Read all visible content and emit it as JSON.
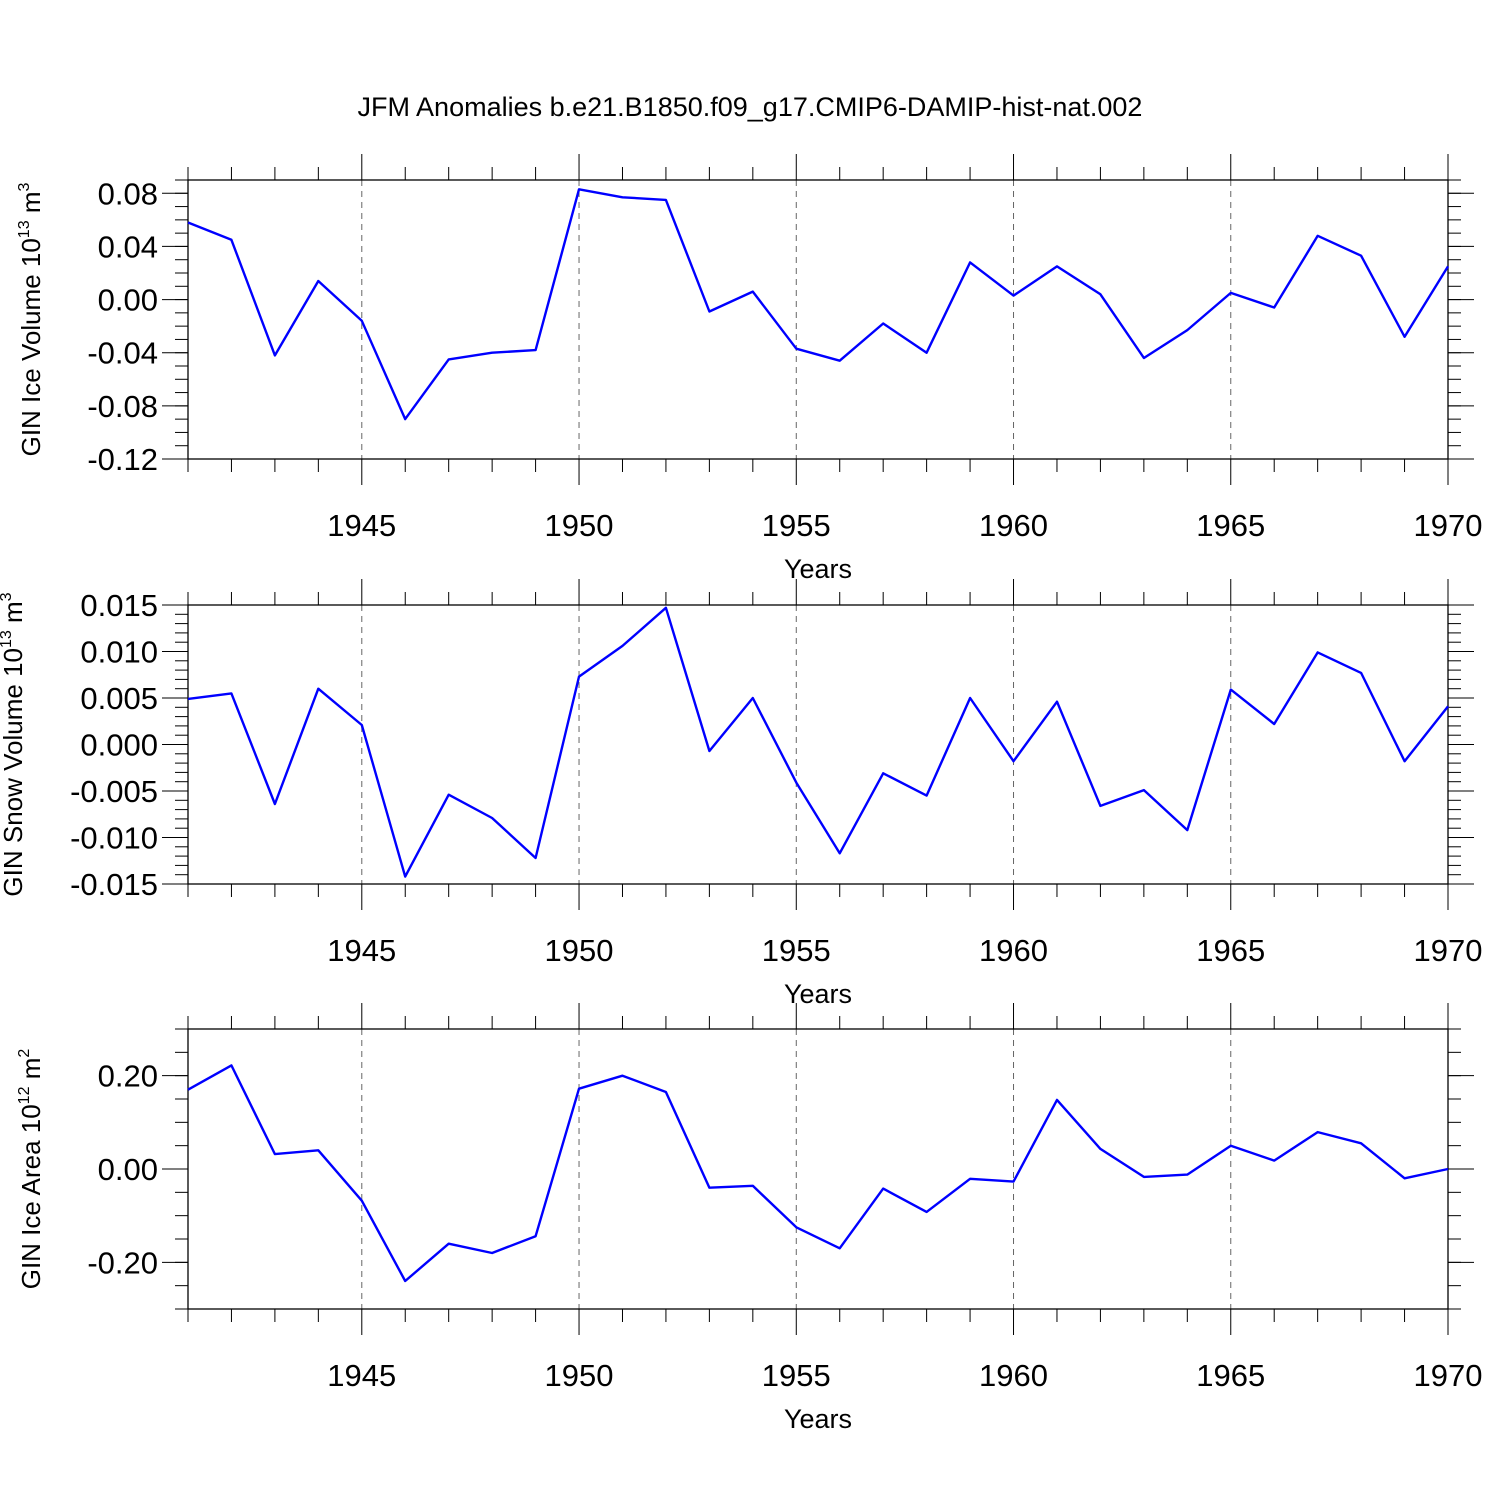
{
  "figure": {
    "title": "JFM Anomalies b.e21.B1850.f09_g17.CMIP6-DAMIP-hist-nat.002",
    "line_color": "#0000ff"
  },
  "chart_data": [
    {
      "type": "line",
      "ylabel": "GIN Ice Volume 10",
      "ylabel_exp": "13",
      "ylabel_unit": " m",
      "ylabel_unit_exp": "3",
      "xlabel": "Years",
      "xlim": [
        1941,
        1970
      ],
      "ylim": [
        -0.12,
        0.09
      ],
      "xticks": [
        1945,
        1950,
        1955,
        1960,
        1965,
        1970
      ],
      "xtick_labels": [
        "1945",
        "1950",
        "1955",
        "1960",
        "1965",
        "1970"
      ],
      "yticks": [
        -0.12,
        -0.08,
        -0.04,
        0.0,
        0.04,
        0.08
      ],
      "ytick_labels": [
        "-0.12",
        "-0.08",
        "-0.04",
        "0.00",
        "0.04",
        "0.08"
      ],
      "yminor_step": 0.01,
      "x": [
        1941,
        1942,
        1943,
        1944,
        1945,
        1946,
        1947,
        1948,
        1949,
        1950,
        1951,
        1952,
        1953,
        1954,
        1955,
        1956,
        1957,
        1958,
        1959,
        1960,
        1961,
        1962,
        1963,
        1964,
        1965,
        1966,
        1967,
        1968,
        1969,
        1970
      ],
      "values": [
        0.058,
        0.045,
        -0.042,
        0.014,
        -0.016,
        -0.09,
        -0.045,
        -0.04,
        -0.038,
        0.083,
        0.077,
        0.075,
        -0.009,
        0.006,
        -0.037,
        -0.046,
        -0.018,
        -0.04,
        0.028,
        0.003,
        0.025,
        0.004,
        -0.044,
        -0.023,
        0.005,
        -0.006,
        0.048,
        0.033,
        -0.028,
        0.025
      ]
    },
    {
      "type": "line",
      "ylabel": "GIN Snow Volume 10",
      "ylabel_exp": "13",
      "ylabel_unit": " m",
      "ylabel_unit_exp": "3",
      "xlabel": "Years",
      "xlim": [
        1941,
        1970
      ],
      "ylim": [
        -0.015,
        0.015
      ],
      "xticks": [
        1945,
        1950,
        1955,
        1960,
        1965,
        1970
      ],
      "xtick_labels": [
        "1945",
        "1950",
        "1955",
        "1960",
        "1965",
        "1970"
      ],
      "yticks": [
        -0.015,
        -0.01,
        -0.005,
        0.0,
        0.005,
        0.01,
        0.015
      ],
      "ytick_labels": [
        "-0.015",
        "-0.010",
        "-0.005",
        "0.000",
        "0.005",
        "0.010",
        "0.015"
      ],
      "yminor_step": 0.001,
      "x": [
        1941,
        1942,
        1943,
        1944,
        1945,
        1946,
        1947,
        1948,
        1949,
        1950,
        1951,
        1952,
        1953,
        1954,
        1955,
        1956,
        1957,
        1958,
        1959,
        1960,
        1961,
        1962,
        1963,
        1964,
        1965,
        1966,
        1967,
        1968,
        1969,
        1970
      ],
      "values": [
        0.0049,
        0.0055,
        -0.0064,
        0.006,
        0.0021,
        -0.0142,
        -0.0054,
        -0.0079,
        -0.0122,
        0.0073,
        0.0106,
        0.0147,
        -0.0007,
        0.005,
        -0.0041,
        -0.0117,
        -0.0031,
        -0.0055,
        0.005,
        -0.0018,
        0.0046,
        -0.0066,
        -0.0049,
        -0.0092,
        0.0059,
        0.0022,
        0.0099,
        0.0077,
        -0.0018,
        0.0041
      ]
    },
    {
      "type": "line",
      "ylabel": "GIN Ice Area 10",
      "ylabel_exp": "12",
      "ylabel_unit": " m",
      "ylabel_unit_exp": "2",
      "xlabel": "Years",
      "xlim": [
        1941,
        1970
      ],
      "ylim": [
        -0.3,
        0.3
      ],
      "xticks": [
        1945,
        1950,
        1955,
        1960,
        1965,
        1970
      ],
      "xtick_labels": [
        "1945",
        "1950",
        "1955",
        "1960",
        "1965",
        "1970"
      ],
      "yticks": [
        -0.2,
        0.0,
        0.2
      ],
      "ytick_labels": [
        "-0.20",
        "0.00",
        "0.20"
      ],
      "yminor_step": 0.05,
      "x": [
        1941,
        1942,
        1943,
        1944,
        1945,
        1946,
        1947,
        1948,
        1949,
        1950,
        1951,
        1952,
        1953,
        1954,
        1955,
        1956,
        1957,
        1958,
        1959,
        1960,
        1961,
        1962,
        1963,
        1964,
        1965,
        1966,
        1967,
        1968,
        1969,
        1970
      ],
      "values": [
        0.17,
        0.222,
        0.032,
        0.04,
        -0.068,
        -0.24,
        -0.16,
        -0.18,
        -0.144,
        0.172,
        0.2,
        0.165,
        -0.04,
        -0.036,
        -0.125,
        -0.17,
        -0.042,
        -0.092,
        -0.021,
        -0.027,
        0.148,
        0.043,
        -0.017,
        -0.012,
        0.05,
        0.018,
        0.079,
        0.055,
        -0.02,
        0.0
      ]
    }
  ]
}
